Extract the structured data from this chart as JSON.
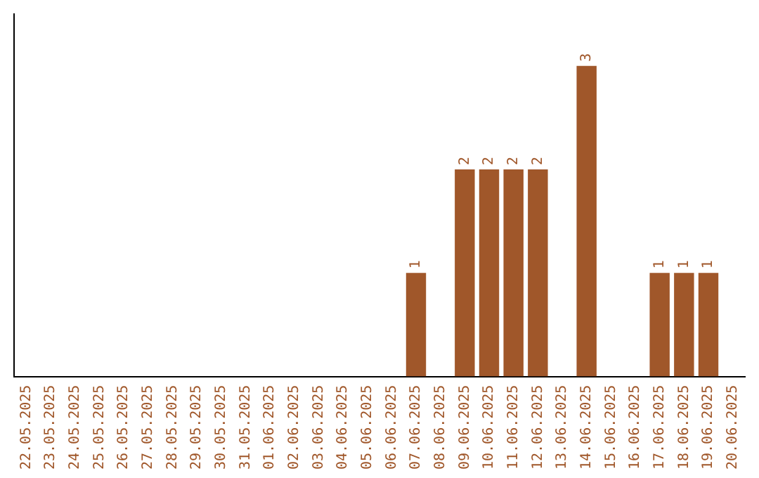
{
  "chart_data": {
    "type": "bar",
    "categories": [
      "22.05.2025",
      "23.05.2025",
      "24.05.2025",
      "25.05.2025",
      "26.05.2025",
      "27.05.2025",
      "28.05.2025",
      "29.05.2025",
      "30.05.2025",
      "31.05.2025",
      "01.06.2025",
      "02.06.2025",
      "03.06.2025",
      "04.06.2025",
      "05.06.2025",
      "06.06.2025",
      "07.06.2025",
      "08.06.2025",
      "09.06.2025",
      "10.06.2025",
      "11.06.2025",
      "12.06.2025",
      "13.06.2025",
      "14.06.2025",
      "15.06.2025",
      "16.06.2025",
      "17.06.2025",
      "18.06.2025",
      "19.06.2025",
      "20.06.2025"
    ],
    "values": [
      null,
      null,
      null,
      null,
      null,
      null,
      null,
      null,
      null,
      null,
      null,
      null,
      null,
      null,
      null,
      null,
      1,
      null,
      2,
      2,
      2,
      2,
      null,
      3,
      null,
      null,
      1,
      1,
      1,
      null
    ],
    "value_labels": [
      null,
      null,
      null,
      null,
      null,
      null,
      null,
      null,
      null,
      null,
      null,
      null,
      null,
      null,
      null,
      null,
      "1",
      null,
      "2",
      "2",
      "2",
      "2",
      null,
      "3",
      null,
      null,
      "1",
      "1",
      "1",
      null
    ],
    "color": "#a0572a",
    "grid": false,
    "legend": false,
    "tick_labels": "x"
  }
}
